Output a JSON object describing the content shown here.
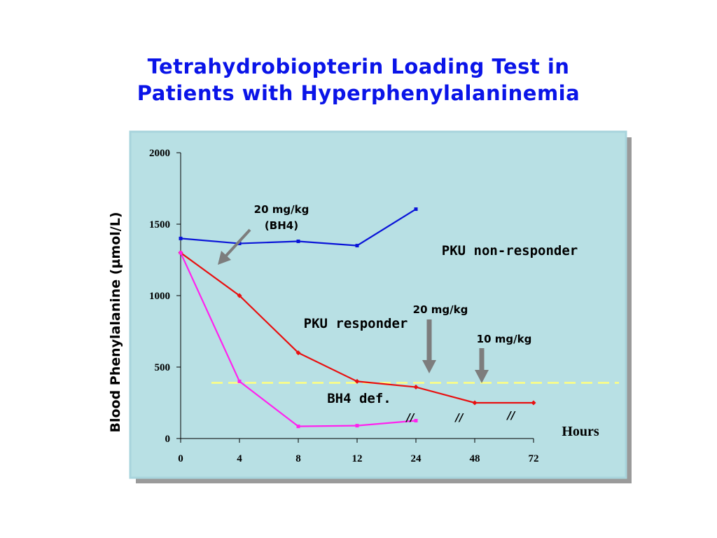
{
  "title": {
    "line1": "Tetrahydrobiopterin Loading Test in",
    "line2": "Patients with Hyperphenylalaninemia"
  },
  "chart_data": {
    "type": "line",
    "title": "Tetrahydrobiopterin Loading Test in Patients with Hyperphenylalaninemia",
    "ylabel": "Blood Phenylalanine (µmol/L)",
    "xlabel": "Hours",
    "categories": [
      "0",
      "4",
      "8",
      "12",
      "24",
      "48",
      "72"
    ],
    "yticks": [
      "0",
      "500",
      "1000",
      "1500",
      "2000"
    ],
    "ylim": [
      0,
      2000
    ],
    "grid": false,
    "series": [
      {
        "name": "PKU non-responder",
        "color": "#0a14d8",
        "x": [
          "0",
          "4",
          "8",
          "12",
          "24"
        ],
        "values": [
          1400,
          1365,
          1380,
          1350,
          1605
        ]
      },
      {
        "name": "PKU responder",
        "color": "#e81010",
        "x": [
          "0",
          "4",
          "8",
          "12",
          "24",
          "48",
          "72"
        ],
        "values": [
          1300,
          1000,
          600,
          400,
          360,
          250,
          250
        ]
      },
      {
        "name": "BH4 def.",
        "color": "#ff22ee",
        "x": [
          "0",
          "4",
          "8",
          "12",
          "24"
        ],
        "values": [
          1300,
          400,
          85,
          90,
          125
        ]
      }
    ],
    "reference_line": {
      "value": 390,
      "color": "#ffff80",
      "style": "dashed"
    },
    "annotations": {
      "dose_bh4_line1": "20 mg/kg",
      "dose_bh4_line2": "(BH4)",
      "non_responder": "PKU non-responder",
      "responder": "PKU responder",
      "bh4_def": "BH4 def.",
      "dose_20": "20 mg/kg",
      "dose_10": "10 mg/kg",
      "break_mark": "//"
    },
    "colors": {
      "plot_bg": "#b8e0e4",
      "plot_border": "#a8d4dc",
      "shadow": "#9a9a9a",
      "arrow": "#7d7d7d"
    }
  }
}
